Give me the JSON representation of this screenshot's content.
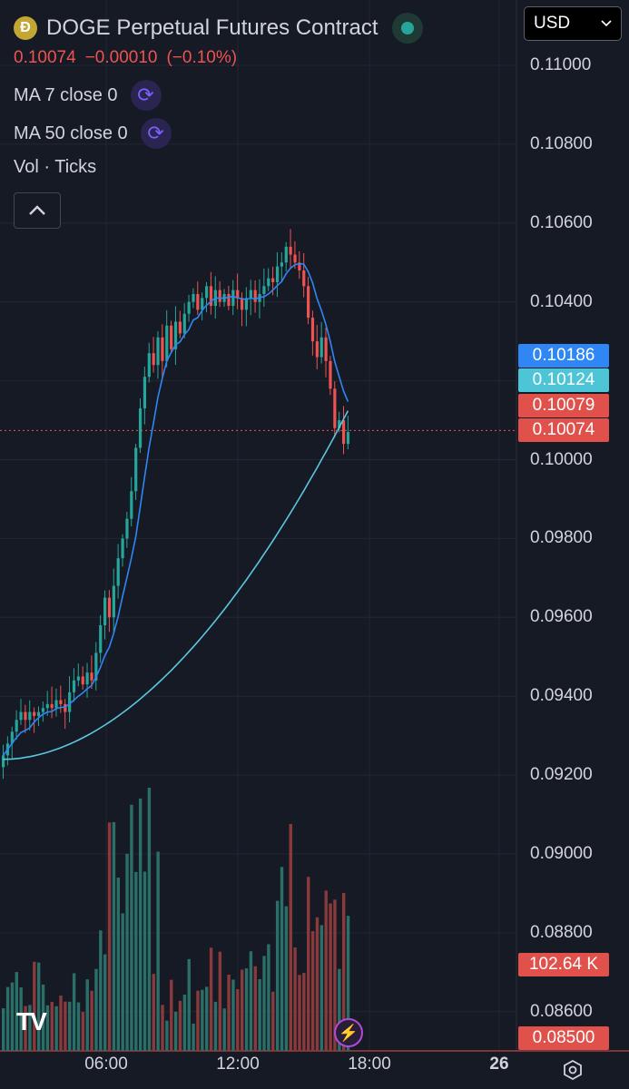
{
  "header": {
    "title": "DOGE Perpetual Futures Contract",
    "logo_icon": "doge-coin-icon",
    "status": "online",
    "last_price": "0.10074",
    "change": "−0.00010",
    "change_pct": "(−0.10%)"
  },
  "indicators": {
    "ma7_label": "MA 7 close 0",
    "ma50_label": "MA 50 close 0",
    "vol_label": "Vol · Ticks",
    "toggle_icon": "refresh-icon",
    "collapse_icon": "chevron-up-icon"
  },
  "currency": {
    "selected": "USD"
  },
  "price_axis": {
    "ticks": [
      "0.11000",
      "0.10800",
      "0.10600",
      "0.10400",
      "0.10200",
      "0.10000",
      "0.09800",
      "0.09600",
      "0.09400",
      "0.09200",
      "0.09000",
      "0.08800",
      "0.08600"
    ]
  },
  "price_tags": [
    {
      "label": "0.10186",
      "color": "#2f86f5"
    },
    {
      "label": "0.10124",
      "color": "#4ec5d6"
    },
    {
      "label": "0.10079",
      "color": "#e0514c"
    },
    {
      "label": "0.10074",
      "color": "#e0514c"
    }
  ],
  "volume_tag": {
    "label": "102.64 K",
    "color": "#e0514c"
  },
  "bottom_tag": {
    "label": "0.08500",
    "color": "#e0514c"
  },
  "time_axis": {
    "ticks": [
      "06:00",
      "12:00",
      "18:00",
      "26"
    ]
  },
  "colors": {
    "up": "#26a69a",
    "down": "#ef5350",
    "ma7": "#2f86f5",
    "ma50": "#5bc7e0",
    "bg": "#161a25",
    "grid": "#232733"
  },
  "chart_data": {
    "type": "candlestick",
    "ylim": [
      0.0845,
      0.1112
    ],
    "last_price": 0.10074,
    "ma7_last": 0.10186,
    "ma50_last": 0.10124,
    "close_series": [
      0.0925,
      0.0928,
      0.0931,
      0.0934,
      0.0936,
      0.0934,
      0.0936,
      0.0935,
      0.0936,
      0.0937,
      0.0938,
      0.0937,
      0.0939,
      0.0938,
      0.0936,
      0.0941,
      0.0944,
      0.0945,
      0.0943,
      0.0946,
      0.0944,
      0.0951,
      0.0958,
      0.0965,
      0.096,
      0.0968,
      0.0975,
      0.098,
      0.0985,
      0.0992,
      0.1003,
      0.1013,
      0.1021,
      0.1027,
      0.1024,
      0.1031,
      0.1025,
      0.1034,
      0.1028,
      0.1035,
      0.1032,
      0.1037,
      0.104,
      0.1042,
      0.1038,
      0.1041,
      0.1044,
      0.1039,
      0.1043,
      0.104,
      0.1042,
      0.1039,
      0.1043,
      0.1041,
      0.1038,
      0.1041,
      0.1043,
      0.104,
      0.1042,
      0.1044,
      0.1046,
      0.1045,
      0.1049,
      0.105,
      0.1054,
      0.1052,
      0.105,
      0.1048,
      0.1044,
      0.1036,
      0.103,
      0.1026,
      0.1031,
      0.1025,
      0.1018,
      0.1008,
      0.101,
      0.1004,
      0.1007
    ]
  }
}
